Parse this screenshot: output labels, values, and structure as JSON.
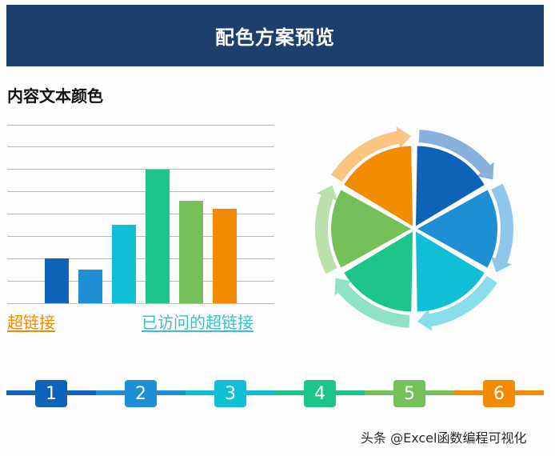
{
  "header": {
    "title": "配色方案预览"
  },
  "section": {
    "title": "内容文本颜色"
  },
  "links": {
    "hyperlink": {
      "label": "超链接",
      "color": "#f18a00"
    },
    "visited": {
      "label": "已访问的超链接",
      "color": "#39c1c8"
    }
  },
  "palette": [
    "#0e63b8",
    "#1e8fd4",
    "#10bfd6",
    "#1ec58a",
    "#76c05a",
    "#f28b00"
  ],
  "chart_data": {
    "type": "bar",
    "categories": [
      "",
      "",
      "",
      "",
      "",
      ""
    ],
    "values": [
      2,
      1.5,
      3.5,
      6,
      4.6,
      4.25
    ],
    "ylim": [
      0,
      8
    ],
    "grid": true
  },
  "pie": {
    "values": [
      1,
      1,
      1,
      1,
      1,
      1
    ]
  },
  "timeline": {
    "steps": [
      "1",
      "2",
      "3",
      "4",
      "5",
      "6"
    ]
  },
  "watermark": {
    "text": "头条 @Excel函数编程可视化"
  }
}
